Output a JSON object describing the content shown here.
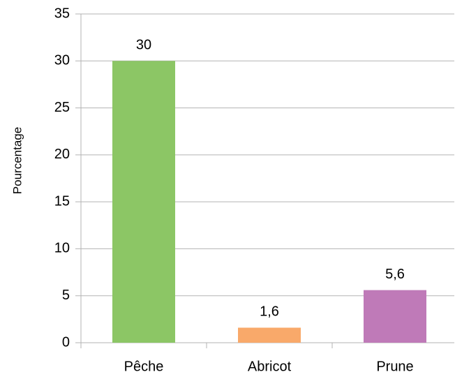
{
  "chart_data": {
    "type": "bar",
    "y_label": "Pourcentage",
    "categories": [
      "Pêche",
      "Abricot",
      "Prune"
    ],
    "values": [
      30,
      1.6,
      5.6
    ],
    "value_labels": [
      "30",
      "1,6",
      "5,6"
    ],
    "colors": [
      "#8cc665",
      "#f9a96a",
      "#bf7ab8"
    ],
    "ylim": [
      0,
      35
    ],
    "yticks": [
      0,
      5,
      10,
      15,
      20,
      25,
      30,
      35
    ],
    "grid": true
  }
}
